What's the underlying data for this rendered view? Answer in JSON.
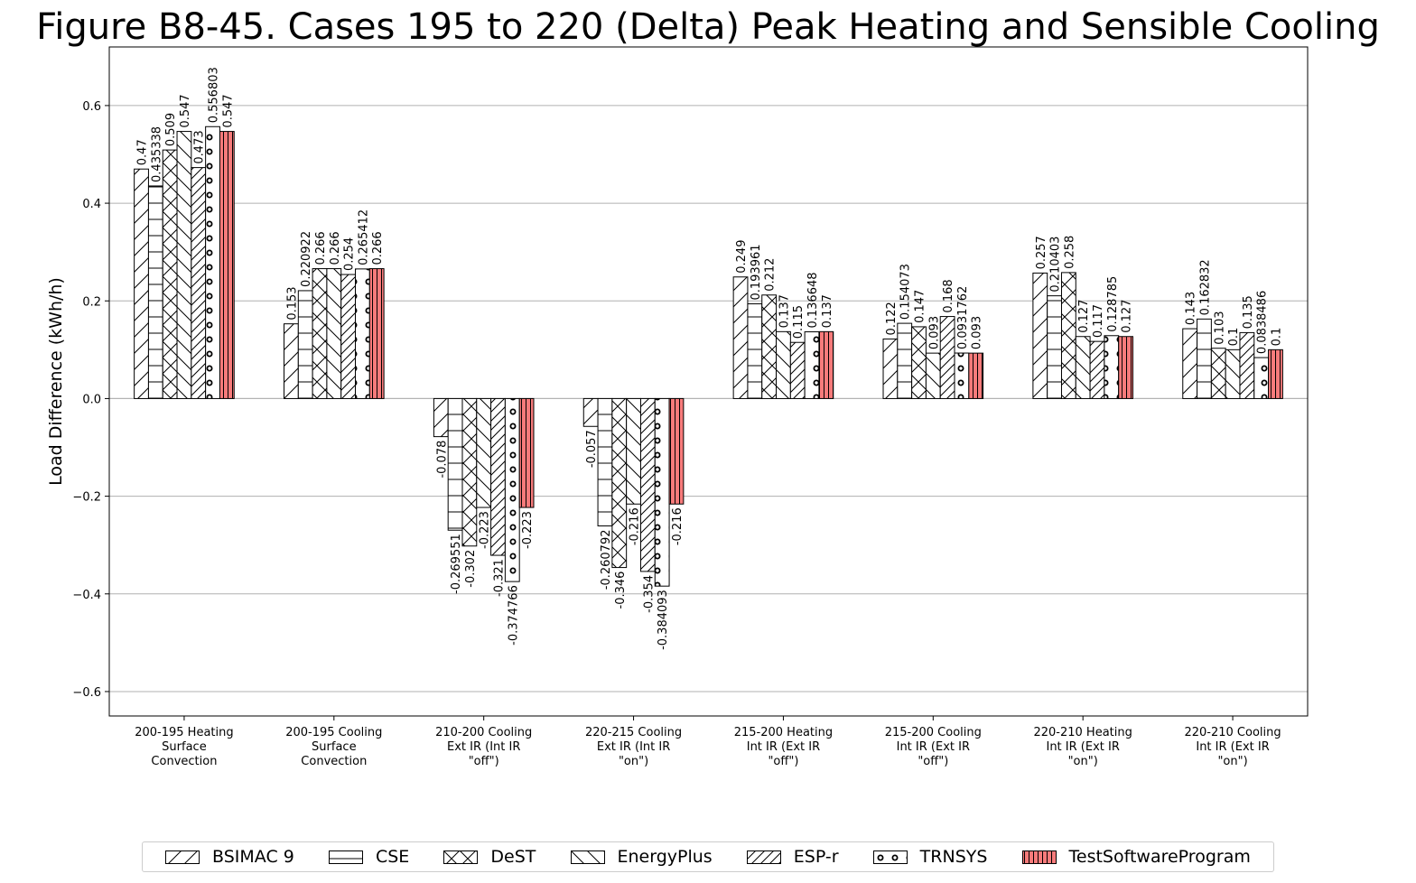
{
  "chart_data": {
    "type": "bar",
    "title": "Figure B8-45. Cases 195 to 220 (Delta) Peak Heating and Sensible Cooling",
    "xlabel": "",
    "ylabel": "Load Difference (kWh/h)",
    "ylim": [
      -0.65,
      0.72
    ],
    "yticks": [
      "0.6",
      "0.4",
      "0.2",
      "0.0",
      "−0.2",
      "−0.4",
      "−0.6"
    ],
    "ytick_values": [
      0.6,
      0.4,
      0.2,
      0.0,
      -0.2,
      -0.4,
      -0.6
    ],
    "grid": "horizontal",
    "legend_position": "bottom",
    "categories": [
      [
        "200-195 Heating",
        "Surface",
        "Convection"
      ],
      [
        "200-195 Cooling",
        "Surface",
        "Convection"
      ],
      [
        "210-200 Cooling",
        "Ext IR (Int IR",
        "\"off\")"
      ],
      [
        "220-215 Cooling",
        "Ext IR (Int IR",
        "\"on\")"
      ],
      [
        "215-200 Heating",
        "Int IR (Ext IR",
        "\"off\")"
      ],
      [
        "215-200 Cooling",
        "Int IR (Ext IR",
        "\"off\")"
      ],
      [
        "220-210 Heating",
        "Int IR (Ext IR",
        "\"on\")"
      ],
      [
        "220-210 Cooling",
        "Int IR (Ext IR",
        "\"on\")"
      ]
    ],
    "series": [
      {
        "name": "BSIMAC 9",
        "hatch": "forward-diagonal",
        "color": "#ffffff",
        "values": [
          0.47,
          0.153,
          -0.078,
          -0.057,
          0.249,
          0.122,
          0.257,
          0.143
        ],
        "labels": [
          "0.47",
          "0.153",
          "-0.078",
          "-0.057",
          "0.249",
          "0.122",
          "0.257",
          "0.143"
        ]
      },
      {
        "name": "CSE",
        "hatch": "horizontal",
        "color": "#ffffff",
        "values": [
          0.435338,
          0.220922,
          -0.269551,
          -0.260792,
          0.193961,
          0.154073,
          0.210403,
          0.162832
        ],
        "labels": [
          "0.435338",
          "0.220922",
          "-0.269551",
          "-0.260792",
          "0.193961",
          "0.154073",
          "0.210403",
          "0.162832"
        ]
      },
      {
        "name": "DeST",
        "hatch": "cross-diagonal",
        "color": "#ffffff",
        "values": [
          0.509,
          0.266,
          -0.302,
          -0.346,
          0.212,
          0.147,
          0.258,
          0.103
        ],
        "labels": [
          "0.509",
          "0.266",
          "-0.302",
          "-0.346",
          "0.212",
          "0.147",
          "0.258",
          "0.103"
        ]
      },
      {
        "name": "EnergyPlus",
        "hatch": "back-diagonal",
        "color": "#ffffff",
        "values": [
          0.547,
          0.266,
          -0.223,
          -0.216,
          0.137,
          0.093,
          0.127,
          0.1
        ],
        "labels": [
          "0.547",
          "0.266",
          "-0.223",
          "-0.216",
          "0.137",
          "0.093",
          "0.127",
          "0.1"
        ]
      },
      {
        "name": "ESP-r",
        "hatch": "dense-forward-diagonal",
        "color": "#ffffff",
        "values": [
          0.473,
          0.254,
          -0.321,
          -0.354,
          0.115,
          0.168,
          0.117,
          0.135
        ],
        "labels": [
          "0.473",
          "0.254",
          "-0.321",
          "-0.354",
          "0.115",
          "0.168",
          "0.117",
          "0.135"
        ]
      },
      {
        "name": "TRNSYS",
        "hatch": "circles",
        "color": "#ffffff",
        "values": [
          0.556803,
          0.265412,
          -0.374766,
          -0.384093,
          0.136648,
          0.0931762,
          0.128785,
          0.0838486
        ],
        "labels": [
          "0.556803",
          "0.265412",
          "-0.374766",
          "-0.384093",
          "0.136648",
          "0.0931762",
          "0.128785",
          "0.0838486"
        ]
      },
      {
        "name": "TestSoftwareProgram",
        "hatch": "vertical",
        "color": "#f77b7b",
        "values": [
          0.547,
          0.266,
          -0.223,
          -0.216,
          0.137,
          0.093,
          0.127,
          0.1
        ],
        "labels": [
          "0.547",
          "0.266",
          "-0.223",
          "-0.216",
          "0.137",
          "0.093",
          "0.127",
          "0.1"
        ]
      }
    ]
  }
}
